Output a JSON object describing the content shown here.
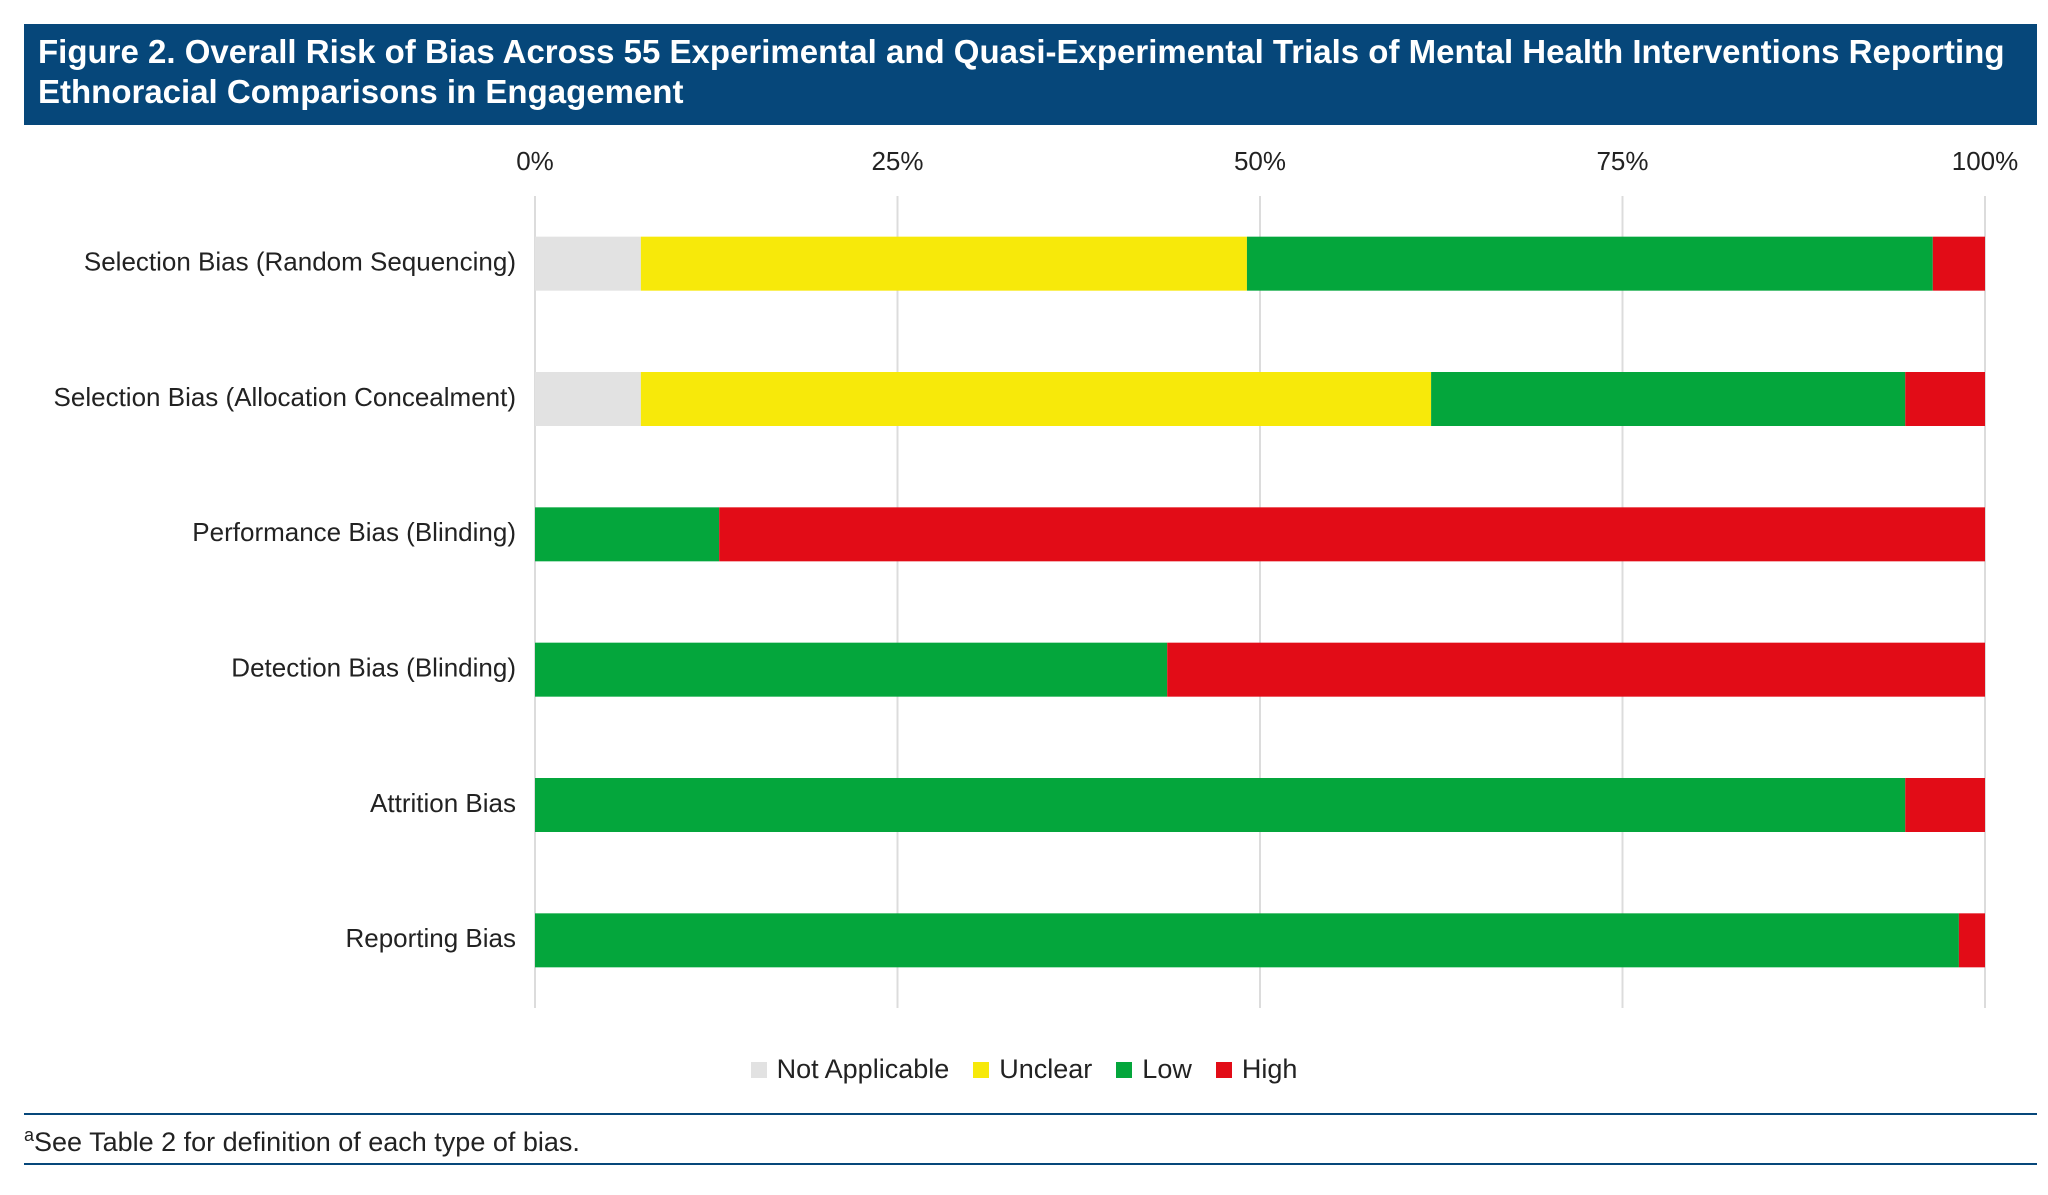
{
  "chart_data": {
    "type": "stacked-bar-horizontal",
    "title": "Figure 2. Overall Risk of Bias Across 55 Experimental and Quasi-Experimental Trials of Mental Health Interventions Reporting Ethnoracial Comparisons in Engagement",
    "categories": [
      "Selection Bias (Random Sequencing)",
      "Selection Bias (Allocation Concealment)",
      "Performance Bias (Blinding)",
      "Detection Bias (Blinding)",
      "Attrition Bias",
      "Reporting Bias"
    ],
    "series": [
      {
        "name": "Not Applicable",
        "color": "#e2e2e2",
        "values": [
          7.3,
          7.3,
          0,
          0,
          0,
          0
        ]
      },
      {
        "name": "Unclear",
        "color": "#f7e90a",
        "values": [
          41.8,
          54.5,
          0,
          0,
          0,
          0
        ]
      },
      {
        "name": "Low",
        "color": "#04a63c",
        "values": [
          47.3,
          32.7,
          12.7,
          43.6,
          94.5,
          98.2
        ]
      },
      {
        "name": "High",
        "color": "#e20c17",
        "values": [
          3.6,
          5.5,
          87.3,
          56.4,
          5.5,
          1.8
        ]
      }
    ],
    "xlim": [
      0,
      100
    ],
    "xticks": [
      {
        "value": 0,
        "label": "0%"
      },
      {
        "value": 25,
        "label": "25%"
      },
      {
        "value": 50,
        "label": "50%"
      },
      {
        "value": 75,
        "label": "75%"
      },
      {
        "value": 100,
        "label": "100%"
      }
    ],
    "grid": true,
    "legend": "bottom",
    "footnote_marker": "a",
    "footnote": "See Table 2 for definition of each type of bias."
  }
}
